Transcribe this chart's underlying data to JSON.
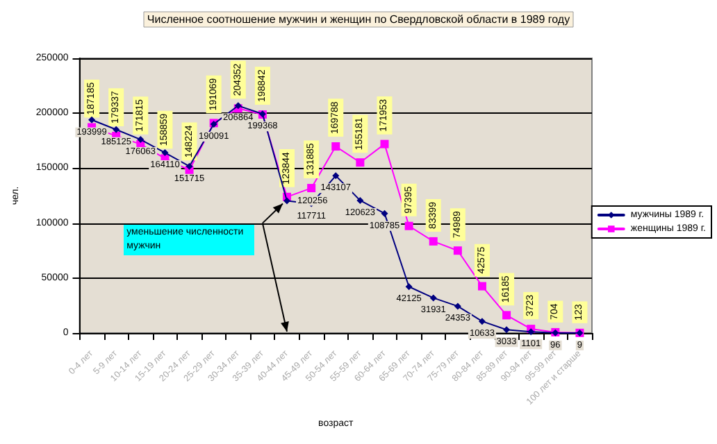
{
  "chart_data": {
    "type": "line",
    "title": "Численное соотношение мужчин и женщин по Свердловской области в 1989 году",
    "xlabel": "возраст",
    "ylabel": "чел.",
    "categories": [
      "0-4 лет",
      "5-9 лет",
      "10-14 лет",
      "15-19 лет",
      "20-24 лет",
      "25-29 лет",
      "30-34 лет",
      "35-39 лет",
      "40-44 лет",
      "45-49 лет",
      "50-54 лет",
      "55-59 лет",
      "60-64 лет",
      "65-69 лет",
      "70-74 лет",
      "75-79 лет",
      "80-84 лет",
      "85-89 лет",
      "90-94 лет",
      "95-99 лет",
      "100 лет и старше"
    ],
    "series": [
      {
        "name": "мужчины 1989 г.",
        "color": "#000080",
        "marker": "diamond",
        "values": [
          193999,
          185125,
          176063,
          164110,
          151715,
          190091,
          206864,
          199368,
          120256,
          117711,
          143107,
          120623,
          108785,
          42125,
          31931,
          24353,
          10633,
          3033,
          1101,
          96,
          9
        ]
      },
      {
        "name": "женщины 1989 г.",
        "color": "#ff00ff",
        "marker": "square",
        "values": [
          187185,
          179337,
          171815,
          158859,
          148224,
          191069,
          204352,
          198842,
          123844,
          131885,
          169788,
          155181,
          171953,
          97395,
          83399,
          74989,
          42575,
          16185,
          3723,
          704,
          123
        ]
      }
    ],
    "data_labels": true,
    "ylim": [
      0,
      250000
    ],
    "yticks": [
      0,
      50000,
      100000,
      150000,
      200000,
      250000
    ],
    "grid": "y",
    "legend": "right",
    "annotations": [
      "уменьшение численности мужчин"
    ]
  }
}
